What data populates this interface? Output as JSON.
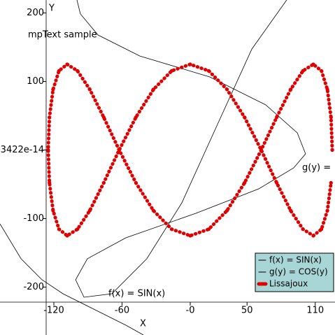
{
  "chart_data": {
    "type": "line",
    "x_label": "X",
    "y_label": "Y",
    "annotations": [
      "mpText sample",
      "f(x) = SIN(x)",
      "g(y) = "
    ],
    "xlim": [
      -167.4,
      127.4
    ],
    "ylim": [
      -269.9,
      218.9
    ],
    "xticks": [
      -120,
      -60,
      {
        "value": 0,
        "label": "-0"
      },
      50,
      110
    ],
    "yticks": [
      -200,
      -100,
      {
        "value": 0,
        "label": "3422e-14"
      },
      100,
      200
    ],
    "series": [
      {
        "name": "f(x) = SIN(x)",
        "color": "#000000",
        "style": "thin",
        "x": [
          -167.4,
          -148.9,
          -130.5,
          -112.0,
          -87.4,
          -56.6,
          -41.2
        ],
        "values": [
          -107.7,
          -158.7,
          -189.3,
          -209.7,
          -230.1,
          -255.6,
          -269.9
        ]
      },
      {
        "name": "g(y) = COS(y)",
        "color": "#000000",
        "style": "thin",
        "x": [
          -99.7,
          -96.6,
          -81.2,
          -44.3,
          17.2,
          66.5,
          94.2,
          101.5,
          91.1,
          60.3,
          4.9,
          -56.6,
          -90.5,
          -100.9,
          -93.5,
          -68.9,
          -38.2,
          -7.4,
          23.4,
          54.2,
          84.9
        ],
        "values": [
          218.9,
          198.5,
          167.9,
          137.2,
          106.6,
          65.8,
          25.0,
          -5.6,
          -26.0,
          -56.6,
          -92.3,
          -128.1,
          -158.7,
          -189.3,
          -214.8,
          -209.7,
          -158.7,
          -77.0,
          35.2,
          147.4,
          218.9
        ]
      },
      {
        "name": "Lissajoux",
        "color": "#e00000",
        "style": "dots",
        "x": [
          125,
          123.9,
          120.7,
          115.5,
          108.3,
          99.2,
          88.4,
          76.1,
          62.5,
          47.8,
          32.4,
          16.3,
          0,
          -16.3,
          -32.4,
          -47.8,
          -62.5,
          -76.1,
          -88.4,
          -99.2,
          -108.3,
          -115.5,
          -120.7,
          -123.9,
          -125,
          -123.9,
          -120.7,
          -115.5,
          -108.3,
          -99.2,
          -88.4,
          -76.1,
          -62.5,
          -47.8,
          -32.4,
          -16.3,
          0,
          16.3,
          32.4,
          47.8,
          62.5,
          76.1,
          88.4,
          99.2,
          108.3,
          115.5,
          120.7,
          123.9
        ],
        "values": [
          0,
          47.8,
          88.4,
          115.5,
          125,
          115.5,
          88.4,
          47.8,
          0,
          -47.8,
          -88.4,
          -115.5,
          -125,
          -115.5,
          -88.4,
          -47.8,
          0,
          47.8,
          88.4,
          115.5,
          125,
          115.5,
          88.4,
          47.8,
          0,
          -47.8,
          -88.4,
          -115.5,
          -125,
          -115.5,
          -88.4,
          -47.8,
          0,
          47.8,
          88.4,
          115.5,
          125,
          115.5,
          88.4,
          47.8,
          0,
          -47.8,
          -88.4,
          -115.5,
          -125,
          -115.5,
          -88.4,
          -47.8
        ]
      }
    ],
    "legend": "lower right",
    "legend_color": "#a8d5d5"
  }
}
